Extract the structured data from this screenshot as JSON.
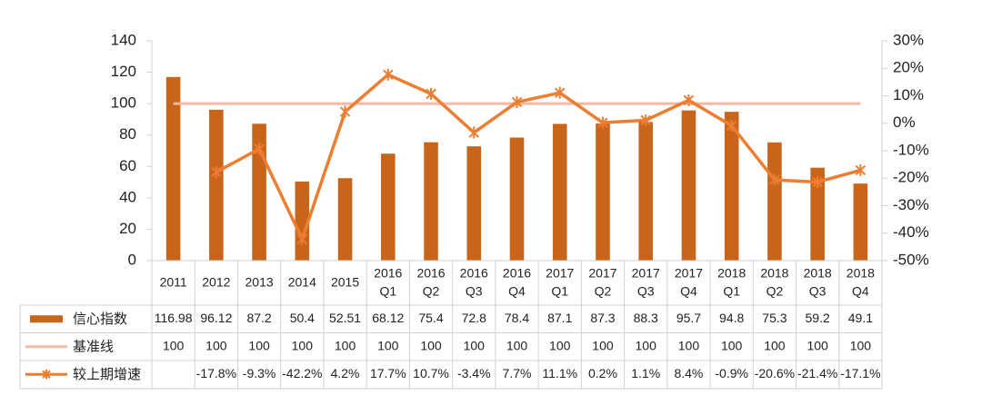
{
  "chart_data": {
    "type": "bar+line",
    "categories": [
      [
        "2011"
      ],
      [
        "2012"
      ],
      [
        "2013"
      ],
      [
        "2014"
      ],
      [
        "2015"
      ],
      [
        "2016",
        "Q1"
      ],
      [
        "2016",
        "Q2"
      ],
      [
        "2016",
        "Q3"
      ],
      [
        "2016",
        "Q4"
      ],
      [
        "2017",
        "Q1"
      ],
      [
        "2017",
        "Q2"
      ],
      [
        "2017",
        "Q3"
      ],
      [
        "2017",
        "Q4"
      ],
      [
        "2018",
        "Q1"
      ],
      [
        "2018",
        "Q2"
      ],
      [
        "2018",
        "Q3"
      ],
      [
        "2018",
        "Q4"
      ]
    ],
    "y_left": {
      "min": 0,
      "max": 140,
      "step": 20,
      "ticks": [
        "0",
        "20",
        "40",
        "60",
        "80",
        "100",
        "120",
        "140"
      ]
    },
    "y_right": {
      "min": -50,
      "max": 30,
      "step": 10,
      "ticks": [
        "-50%",
        "-40%",
        "-30%",
        "-20%",
        "-10%",
        "0%",
        "10%",
        "20%",
        "30%"
      ]
    },
    "series": [
      {
        "name": "信心指数",
        "kind": "bar",
        "axis": "left",
        "color": "#C8651B",
        "values": [
          116.98,
          96.12,
          87.2,
          50.4,
          52.51,
          68.12,
          75.4,
          72.8,
          78.4,
          87.1,
          87.3,
          88.3,
          95.7,
          94.8,
          75.3,
          59.2,
          49.1
        ],
        "labels": [
          "116.98",
          "96.12",
          "87.2",
          "50.4",
          "52.51",
          "68.12",
          "75.4",
          "72.8",
          "78.4",
          "87.1",
          "87.3",
          "88.3",
          "95.7",
          "94.8",
          "75.3",
          "59.2",
          "49.1"
        ]
      },
      {
        "name": "基准线",
        "kind": "line",
        "axis": "left",
        "color": "#F5B9A2",
        "values": [
          100,
          100,
          100,
          100,
          100,
          100,
          100,
          100,
          100,
          100,
          100,
          100,
          100,
          100,
          100,
          100,
          100
        ],
        "labels": [
          "100",
          "100",
          "100",
          "100",
          "100",
          "100",
          "100",
          "100",
          "100",
          "100",
          "100",
          "100",
          "100",
          "100",
          "100",
          "100",
          "100"
        ]
      },
      {
        "name": "较上期增速",
        "kind": "line",
        "axis": "right",
        "marker": "star",
        "color": "#ED7D31",
        "values": [
          null,
          -17.8,
          -9.3,
          -42.2,
          4.2,
          17.7,
          10.7,
          -3.4,
          7.7,
          11.1,
          0.2,
          1.1,
          8.4,
          -0.9,
          -20.6,
          -21.4,
          -17.1
        ],
        "labels": [
          "",
          "-17.8%",
          "-9.3%",
          "-42.2%",
          "4.2%",
          "17.7%",
          "10.7%",
          "-3.4%",
          "7.7%",
          "11.1%",
          "0.2%",
          "1.1%",
          "8.4%",
          "-0.9%",
          "-20.6%",
          "-21.4%",
          "-17.1%"
        ]
      }
    ],
    "data_table": true,
    "grid": false,
    "legend": "in-table"
  }
}
